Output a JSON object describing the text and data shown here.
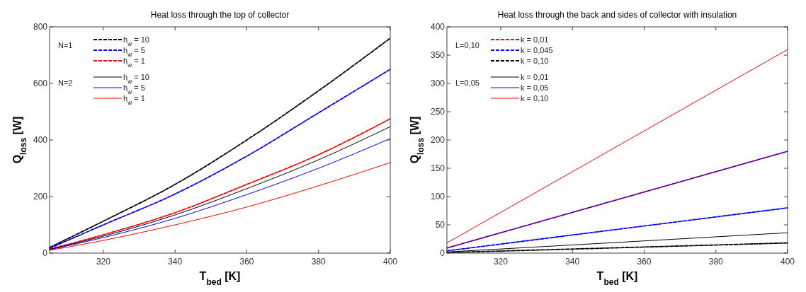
{
  "chart_data": [
    {
      "type": "line",
      "title": "Heat loss through the top of collector",
      "xlabel": "T$_{bed}$ [K]",
      "ylabel": "Q$_{loss}$ [W]",
      "xlim": [
        305,
        400
      ],
      "xticks": [
        320,
        340,
        360,
        380,
        400
      ],
      "ylim": [
        0,
        800
      ],
      "yticks": [
        0,
        200,
        400,
        600,
        800
      ],
      "legend": "top left",
      "annotations": [
        "N=1",
        "N=2"
      ],
      "grid": false,
      "series": [
        {
          "name": "h$_{w}$ = 10",
          "color": "#000000",
          "line_style": "dashed",
          "x": [
            305,
            320,
            340,
            360,
            380,
            400
          ],
          "values": [
            20,
            113,
            243,
            400,
            574,
            760
          ]
        },
        {
          "name": "h$_{w}$ = 5",
          "color": "#0000ff",
          "line_style": "dashed",
          "x": [
            305,
            320,
            340,
            360,
            380,
            400
          ],
          "values": [
            17,
            100,
            209,
            343,
            496,
            650
          ]
        },
        {
          "name": "h$_{w}$ = 1",
          "color": "#ff0000",
          "line_style": "dashed",
          "x": [
            305,
            320,
            340,
            360,
            380,
            400
          ],
          "values": [
            14,
            65,
            143,
            243,
            348,
            475
          ]
        },
        {
          "name": "h$_{w}$ = 10",
          "color": "#000000",
          "line_style": "solid",
          "x": [
            305,
            320,
            340,
            360,
            380,
            400
          ],
          "values": [
            13,
            60,
            135,
            228,
            330,
            447
          ]
        },
        {
          "name": "h$_{w}$ = 5",
          "color": "#0000ff",
          "line_style": "solid",
          "x": [
            305,
            320,
            340,
            360,
            380,
            400
          ],
          "values": [
            12,
            55,
            123,
            207,
            300,
            405
          ]
        },
        {
          "name": "h$_{w}$ = 1",
          "color": "#ff0000",
          "line_style": "solid",
          "x": [
            305,
            320,
            340,
            360,
            380,
            400
          ],
          "values": [
            10,
            45,
            100,
            163,
            238,
            320
          ]
        }
      ]
    },
    {
      "type": "line",
      "title": "Heat loss through the back and sides of collector with insulation",
      "xlabel": "T$_{bed}$ [K]",
      "ylabel": "Q$_{loss}$ [W]",
      "xlim": [
        305,
        400
      ],
      "xticks": [
        320,
        340,
        360,
        380,
        400
      ],
      "ylim": [
        0,
        400
      ],
      "yticks": [
        0,
        50,
        100,
        150,
        200,
        250,
        300,
        350,
        400
      ],
      "legend": "top left",
      "annotations": [
        "L=0,10",
        "L=0,05"
      ],
      "grid": false,
      "series": [
        {
          "name": "k = 0,01",
          "color": "#ff0000",
          "line_style": "dashed",
          "x": [
            305,
            350,
            400
          ],
          "values": [
            9,
            90,
            180
          ]
        },
        {
          "name": "k = 0,045",
          "color": "#0000ff",
          "line_style": "dashed",
          "x": [
            305,
            350,
            400
          ],
          "values": [
            4,
            40,
            80
          ]
        },
        {
          "name": "k = 0,10",
          "color": "#000000",
          "line_style": "dashed",
          "x": [
            305,
            350,
            400
          ],
          "values": [
            1,
            9,
            18
          ]
        },
        {
          "name": "k = 0,01",
          "color": "#000000",
          "line_style": "solid",
          "x": [
            305,
            350,
            400
          ],
          "values": [
            2,
            18,
            36
          ]
        },
        {
          "name": "k = 0,05",
          "color": "#0000ff",
          "line_style": "solid",
          "x": [
            305,
            350,
            400
          ],
          "values": [
            9,
            90,
            180
          ]
        },
        {
          "name": "k = 0,10",
          "color": "#ff0000",
          "line_style": "solid",
          "x": [
            305,
            350,
            400
          ],
          "values": [
            18,
            180,
            360
          ]
        }
      ]
    }
  ]
}
